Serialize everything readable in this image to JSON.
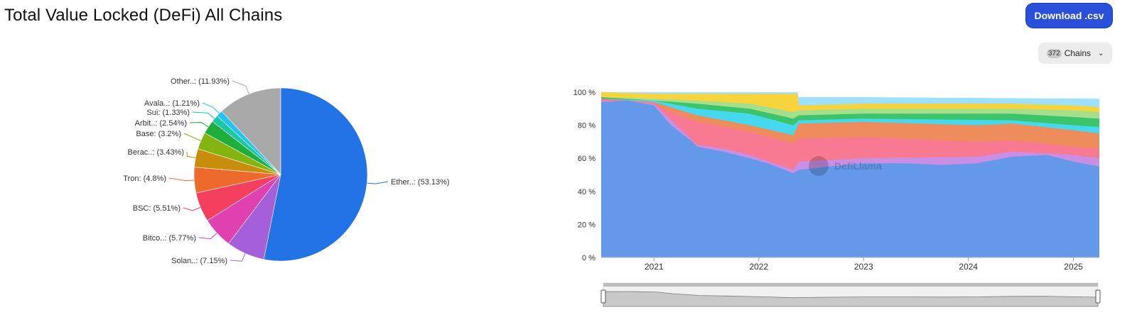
{
  "header": {
    "title": "Total Value Locked (DeFi) All Chains",
    "download_label": "Download .csv",
    "chains_count": "372",
    "chains_label": "Chains"
  },
  "watermark": "DefiLlama",
  "chart_data": [
    {
      "type": "pie",
      "slices": [
        {
          "label": "Ether..: (53.13%)",
          "name": "Ether..",
          "value": 53.13,
          "color": "#2173e6"
        },
        {
          "label": "Solan..: (7.15%)",
          "name": "Solan..",
          "value": 7.15,
          "color": "#a45fd9"
        },
        {
          "label": "Bitco..: (5.77%)",
          "name": "Bitco..",
          "value": 5.77,
          "color": "#e040b0"
        },
        {
          "label": "BSC: (5.51%)",
          "name": "BSC",
          "value": 5.51,
          "color": "#f43f5e"
        },
        {
          "label": "Tron: (4.8%)",
          "name": "Tron",
          "value": 4.8,
          "color": "#ee6a2c"
        },
        {
          "label": "Berac..: (3.43%)",
          "name": "Berac..",
          "value": 3.43,
          "color": "#c98d0c"
        },
        {
          "label": "Base: (3.2%)",
          "name": "Base",
          "value": 3.2,
          "color": "#84b40f"
        },
        {
          "label": "Arbit..: (2.54%)",
          "name": "Arbit..",
          "value": 2.54,
          "color": "#1fae3c"
        },
        {
          "label": "Sui: (1.33%)",
          "name": "Sui",
          "value": 1.33,
          "color": "#16c9a3"
        },
        {
          "label": "Avala..: (1.21%)",
          "name": "Avala..",
          "value": 1.21,
          "color": "#22c3ee"
        },
        {
          "label": "Other..: (11.93%)",
          "name": "Other..",
          "value": 11.93,
          "color": "#a9a9a9"
        }
      ]
    },
    {
      "type": "area",
      "stacked_percent": true,
      "y_ticks": [
        "0 %",
        "20 %",
        "40 %",
        "60 %",
        "80 %",
        "100 %"
      ],
      "ylim": [
        0,
        100
      ],
      "x_ticks": [
        "2021",
        "2022",
        "2023",
        "2024",
        "2025"
      ],
      "x_range": [
        "2020-07",
        "2025-04"
      ],
      "series": [
        {
          "name": "Ether..",
          "color": "#6499e9",
          "points": [
            [
              "2020-07-01",
              94
            ],
            [
              "2020-10-01",
              95
            ],
            [
              "2021-01-01",
              92
            ],
            [
              "2021-03-01",
              80
            ],
            [
              "2021-05-15",
              70
            ],
            [
              "2021-06-01",
              67
            ],
            [
              "2021-09-01",
              64
            ],
            [
              "2021-12-01",
              60
            ],
            [
              "2022-02-01",
              57
            ],
            [
              "2022-05-01",
              51
            ],
            [
              "2022-05-20",
              53
            ],
            [
              "2022-09-01",
              55
            ],
            [
              "2023-01-01",
              57
            ],
            [
              "2023-06-01",
              57
            ],
            [
              "2023-10-01",
              56
            ],
            [
              "2024-02-01",
              57
            ],
            [
              "2024-06-01",
              61
            ],
            [
              "2024-10-01",
              62
            ],
            [
              "2025-01-01",
              58
            ],
            [
              "2025-04-01",
              55
            ]
          ]
        },
        {
          "name": "Solan..",
          "color": "#c98fe4",
          "points": [
            [
              "2020-07-01",
              95
            ],
            [
              "2021-01-01",
              93
            ],
            [
              "2021-06-01",
              68
            ],
            [
              "2021-09-01",
              66
            ],
            [
              "2021-12-01",
              62
            ],
            [
              "2022-05-01",
              53
            ],
            [
              "2022-05-20",
              58
            ],
            [
              "2023-01-01",
              60
            ],
            [
              "2024-02-01",
              61
            ],
            [
              "2024-06-01",
              64
            ],
            [
              "2025-01-01",
              62
            ],
            [
              "2025-04-01",
              60
            ]
          ]
        },
        {
          "name": "BSC",
          "color": "#f87a92",
          "points": [
            [
              "2020-07-01",
              96
            ],
            [
              "2021-01-01",
              94
            ],
            [
              "2021-02-01",
              90
            ],
            [
              "2021-06-01",
              82
            ],
            [
              "2021-12-01",
              76
            ],
            [
              "2022-05-01",
              69
            ],
            [
              "2022-05-20",
              72
            ],
            [
              "2023-01-01",
              73
            ],
            [
              "2024-02-01",
              70
            ],
            [
              "2024-06-01",
              71
            ],
            [
              "2025-01-01",
              67
            ],
            [
              "2025-04-01",
              66
            ]
          ]
        },
        {
          "name": "Tron",
          "color": "#ee8c5c",
          "points": [
            [
              "2020-07-01",
              96
            ],
            [
              "2021-01-01",
              94
            ],
            [
              "2021-06-01",
              86
            ],
            [
              "2021-12-01",
              80
            ],
            [
              "2022-05-01",
              74
            ],
            [
              "2022-05-20",
              81
            ],
            [
              "2023-01-01",
              82
            ],
            [
              "2024-02-01",
              80
            ],
            [
              "2024-06-01",
              81
            ],
            [
              "2025-01-01",
              77
            ],
            [
              "2025-04-01",
              75
            ]
          ]
        },
        {
          "name": "Avala..",
          "color": "#46d9ee",
          "points": [
            [
              "2020-07-01",
              96
            ],
            [
              "2021-01-01",
              95
            ],
            [
              "2021-06-01",
              90
            ],
            [
              "2021-12-01",
              87
            ],
            [
              "2022-05-01",
              80
            ],
            [
              "2022-05-20",
              83
            ],
            [
              "2023-01-01",
              84
            ],
            [
              "2024-06-01",
              83
            ],
            [
              "2025-01-01",
              80
            ],
            [
              "2025-04-01",
              79
            ]
          ]
        },
        {
          "name": "Arbit..",
          "color": "#3cc46b",
          "points": [
            [
              "2020-07-01",
              97
            ],
            [
              "2021-01-01",
              95
            ],
            [
              "2021-06-01",
              93
            ],
            [
              "2021-12-01",
              90
            ],
            [
              "2022-05-01",
              84
            ],
            [
              "2022-05-20",
              86
            ],
            [
              "2023-01-01",
              87
            ],
            [
              "2024-06-01",
              87
            ],
            [
              "2025-01-01",
              85
            ],
            [
              "2025-04-01",
              84
            ]
          ]
        },
        {
          "name": "Base",
          "color": "#a5df8c",
          "points": [
            [
              "2020-07-01",
              97
            ],
            [
              "2021-01-01",
              96
            ],
            [
              "2021-06-01",
              95
            ],
            [
              "2021-12-01",
              93
            ],
            [
              "2022-05-01",
              88
            ],
            [
              "2022-05-20",
              89
            ],
            [
              "2023-01-01",
              90
            ],
            [
              "2024-06-01",
              90
            ],
            [
              "2025-01-01",
              89
            ],
            [
              "2025-04-01",
              88
            ]
          ]
        },
        {
          "name": "Other..",
          "color": "#f7d33c",
          "points": [
            [
              "2020-07-01",
              100
            ],
            [
              "2021-01-01",
              99
            ],
            [
              "2021-06-01",
              99
            ],
            [
              "2022-01-01",
              99
            ],
            [
              "2022-05-15",
              99
            ],
            [
              "2022-05-20",
              92
            ],
            [
              "2023-01-01",
              93
            ],
            [
              "2024-06-01",
              93
            ],
            [
              "2025-01-01",
              92
            ],
            [
              "2025-04-01",
              91
            ]
          ]
        },
        {
          "name": "Sui",
          "color": "#9de0ff",
          "points": [
            [
              "2020-07-01",
              100
            ],
            [
              "2021-01-01",
              100
            ],
            [
              "2022-05-15",
              100
            ],
            [
              "2022-05-20",
              97
            ],
            [
              "2023-01-01",
              97
            ],
            [
              "2025-04-01",
              96
            ]
          ]
        }
      ],
      "navigator": true
    }
  ]
}
